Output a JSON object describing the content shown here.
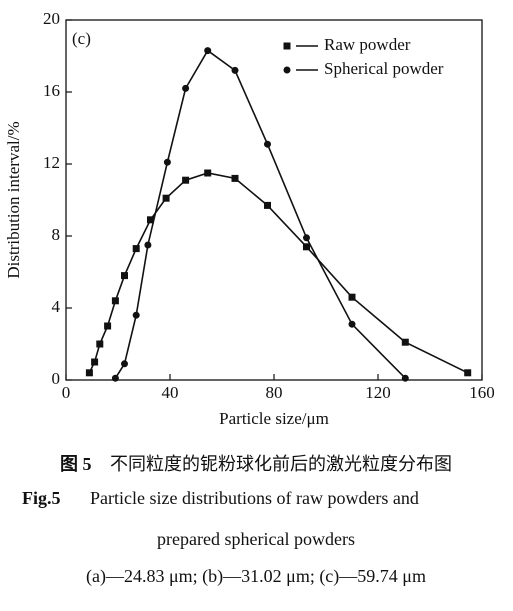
{
  "chart_data": {
    "type": "line",
    "panel_label": "(c)",
    "x_label": "Particle size/μm",
    "y_label": "Distribution interval/%",
    "xlim": [
      0,
      160
    ],
    "xticks": [
      0,
      40,
      80,
      120,
      160
    ],
    "ylim": [
      0,
      20
    ],
    "yticks": [
      0,
      4,
      8,
      12,
      16,
      20
    ],
    "legend": "top-right",
    "series": [
      {
        "name": "Raw powder",
        "color": "#111111",
        "marker": "square",
        "x": [
          9,
          11,
          13,
          16,
          19,
          22.5,
          27,
          32.5,
          38.5,
          46,
          54.5,
          65,
          77.5,
          92.5,
          110,
          130.5,
          154.5
        ],
        "values": [
          0.4,
          1.0,
          2.0,
          3.0,
          4.4,
          5.8,
          7.3,
          8.9,
          10.1,
          11.1,
          11.5,
          11.2,
          9.7,
          7.4,
          4.6,
          2.1,
          0.4
        ]
      },
      {
        "name": "Spherical powder",
        "color": "#111111",
        "marker": "circle",
        "x": [
          19,
          22.5,
          27,
          31.5,
          39,
          46,
          54.5,
          65,
          77.5,
          92.5,
          110,
          130.5
        ],
        "values": [
          0.1,
          0.9,
          3.6,
          7.5,
          12.1,
          16.2,
          18.3,
          17.2,
          13.1,
          7.9,
          3.1,
          0.1
        ]
      }
    ]
  },
  "caption": {
    "cn_label": "图 5",
    "cn_text": "不同粒度的铌粉球化前后的激光粒度分布图",
    "en_label": "Fig.5",
    "en_lines": [
      "Particle size distributions of raw powders and",
      "prepared spherical powders"
    ],
    "note": "(a)—24.83 μm; (b)—31.02 μm; (c)—59.74 μm"
  }
}
